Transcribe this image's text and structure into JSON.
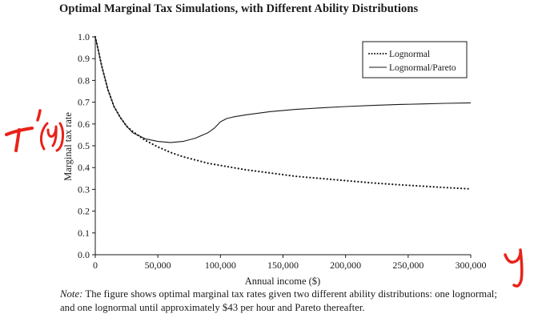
{
  "chart_data": {
    "type": "line",
    "title": "Optimal Marginal Tax Simulations, with Different Ability Distributions",
    "xlabel": "Annual income ($)",
    "ylabel": "Marginal tax rate",
    "xlim": [
      0,
      300000
    ],
    "ylim": [
      0,
      1.0
    ],
    "xticks": [
      0,
      50000,
      100000,
      150000,
      200000,
      250000,
      300000
    ],
    "xtick_labels": [
      "0",
      "50,000",
      "100,000",
      "150,000",
      "200,000",
      "250,000",
      "300,000"
    ],
    "yticks": [
      0,
      0.1,
      0.2,
      0.3,
      0.4,
      0.5,
      0.6,
      0.7,
      0.8,
      0.9,
      1.0
    ],
    "ytick_labels": [
      "0.0",
      "0.1",
      "0.2",
      "0.3",
      "0.4",
      "0.5",
      "0.6",
      "0.7",
      "0.8",
      "0.9",
      "1.0"
    ],
    "grid": false,
    "legend_position": "top-right",
    "series": [
      {
        "name": "Lognormal",
        "style": "dotted",
        "color": "#1a1a1a",
        "points": [
          [
            0,
            1.0
          ],
          [
            2000,
            0.95
          ],
          [
            5000,
            0.87
          ],
          [
            10000,
            0.76
          ],
          [
            15000,
            0.68
          ],
          [
            20000,
            0.63
          ],
          [
            25000,
            0.59
          ],
          [
            30000,
            0.565
          ],
          [
            40000,
            0.525
          ],
          [
            50000,
            0.495
          ],
          [
            60000,
            0.47
          ],
          [
            70000,
            0.45
          ],
          [
            80000,
            0.435
          ],
          [
            90000,
            0.42
          ],
          [
            100000,
            0.41
          ],
          [
            120000,
            0.39
          ],
          [
            140000,
            0.375
          ],
          [
            160000,
            0.36
          ],
          [
            180000,
            0.35
          ],
          [
            200000,
            0.34
          ],
          [
            220000,
            0.33
          ],
          [
            240000,
            0.322
          ],
          [
            260000,
            0.315
          ],
          [
            280000,
            0.308
          ],
          [
            300000,
            0.302
          ]
        ]
      },
      {
        "name": "Lognormal/Pareto",
        "style": "solid",
        "color": "#1a1a1a",
        "points": [
          [
            0,
            1.0
          ],
          [
            2000,
            0.95
          ],
          [
            5000,
            0.87
          ],
          [
            10000,
            0.76
          ],
          [
            15000,
            0.68
          ],
          [
            20000,
            0.63
          ],
          [
            25000,
            0.59
          ],
          [
            30000,
            0.56
          ],
          [
            40000,
            0.532
          ],
          [
            50000,
            0.52
          ],
          [
            60000,
            0.515
          ],
          [
            70000,
            0.52
          ],
          [
            80000,
            0.535
          ],
          [
            90000,
            0.56
          ],
          [
            95000,
            0.58
          ],
          [
            100000,
            0.61
          ],
          [
            105000,
            0.625
          ],
          [
            110000,
            0.632
          ],
          [
            120000,
            0.642
          ],
          [
            140000,
            0.657
          ],
          [
            160000,
            0.667
          ],
          [
            180000,
            0.674
          ],
          [
            200000,
            0.68
          ],
          [
            220000,
            0.685
          ],
          [
            240000,
            0.689
          ],
          [
            260000,
            0.692
          ],
          [
            280000,
            0.695
          ],
          [
            300000,
            0.697
          ]
        ]
      }
    ]
  },
  "note": {
    "label": "Note:",
    "text": " The figure shows optimal marginal tax rates given two different ability distributions: one lognormal; and one lognormal until approximately $43 per hour and Pareto thereafter."
  },
  "annotations": {
    "handwritten_y_label": "T'(y)",
    "handwritten_x_label": "y",
    "ink_color": "#e8221a"
  }
}
